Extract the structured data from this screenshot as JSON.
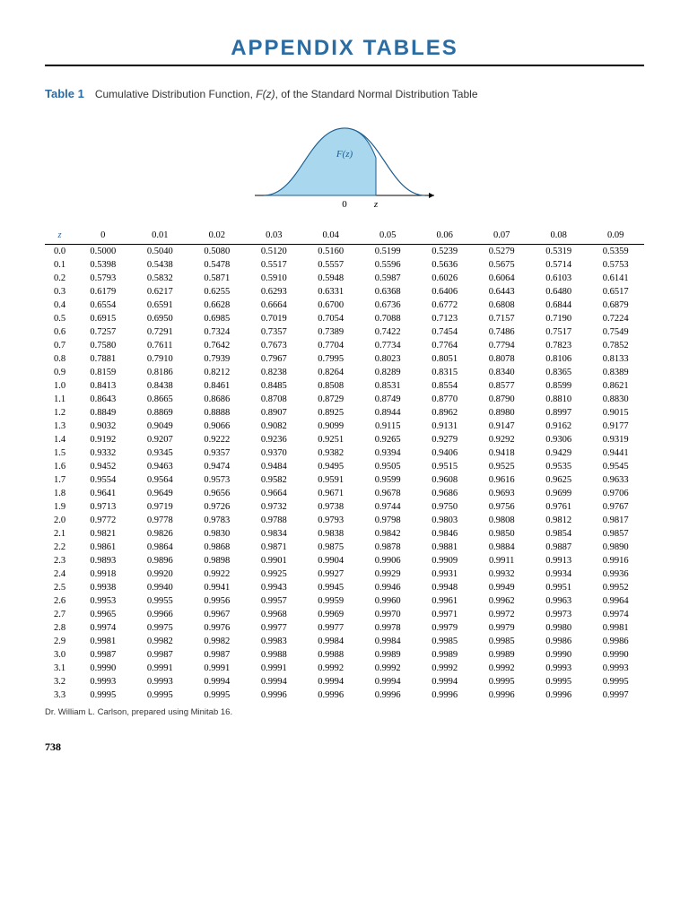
{
  "title": "APPENDIX TABLES",
  "table_label": "Table 1",
  "caption_prefix": "Cumulative Distribution Function, ",
  "caption_fz": "F(z)",
  "caption_suffix": ", of the Standard Normal Distribution Table",
  "curve_label": "F(z)",
  "axis_zero": "0",
  "axis_z": "z",
  "header_z": "z",
  "columns": [
    "0",
    "0.01",
    "0.02",
    "0.03",
    "0.04",
    "0.05",
    "0.06",
    "0.07",
    "0.08",
    "0.09"
  ],
  "rows": [
    {
      "z": "0.0",
      "v": [
        "0.5000",
        "0.5040",
        "0.5080",
        "0.5120",
        "0.5160",
        "0.5199",
        "0.5239",
        "0.5279",
        "0.5319",
        "0.5359"
      ]
    },
    {
      "z": "0.1",
      "v": [
        "0.5398",
        "0.5438",
        "0.5478",
        "0.5517",
        "0.5557",
        "0.5596",
        "0.5636",
        "0.5675",
        "0.5714",
        "0.5753"
      ]
    },
    {
      "z": "0.2",
      "v": [
        "0.5793",
        "0.5832",
        "0.5871",
        "0.5910",
        "0.5948",
        "0.5987",
        "0.6026",
        "0.6064",
        "0.6103",
        "0.6141"
      ]
    },
    {
      "z": "0.3",
      "v": [
        "0.6179",
        "0.6217",
        "0.6255",
        "0.6293",
        "0.6331",
        "0.6368",
        "0.6406",
        "0.6443",
        "0.6480",
        "0.6517"
      ]
    },
    {
      "z": "0.4",
      "v": [
        "0.6554",
        "0.6591",
        "0.6628",
        "0.6664",
        "0.6700",
        "0.6736",
        "0.6772",
        "0.6808",
        "0.6844",
        "0.6879"
      ]
    },
    {
      "z": "0.5",
      "v": [
        "0.6915",
        "0.6950",
        "0.6985",
        "0.7019",
        "0.7054",
        "0.7088",
        "0.7123",
        "0.7157",
        "0.7190",
        "0.7224"
      ]
    },
    {
      "z": "0.6",
      "v": [
        "0.7257",
        "0.7291",
        "0.7324",
        "0.7357",
        "0.7389",
        "0.7422",
        "0.7454",
        "0.7486",
        "0.7517",
        "0.7549"
      ]
    },
    {
      "z": "0.7",
      "v": [
        "0.7580",
        "0.7611",
        "0.7642",
        "0.7673",
        "0.7704",
        "0.7734",
        "0.7764",
        "0.7794",
        "0.7823",
        "0.7852"
      ]
    },
    {
      "z": "0.8",
      "v": [
        "0.7881",
        "0.7910",
        "0.7939",
        "0.7967",
        "0.7995",
        "0.8023",
        "0.8051",
        "0.8078",
        "0.8106",
        "0.8133"
      ]
    },
    {
      "z": "0.9",
      "v": [
        "0.8159",
        "0.8186",
        "0.8212",
        "0.8238",
        "0.8264",
        "0.8289",
        "0.8315",
        "0.8340",
        "0.8365",
        "0.8389"
      ]
    },
    {
      "z": "1.0",
      "v": [
        "0.8413",
        "0.8438",
        "0.8461",
        "0.8485",
        "0.8508",
        "0.8531",
        "0.8554",
        "0.8577",
        "0.8599",
        "0.8621"
      ]
    },
    {
      "z": "1.1",
      "v": [
        "0.8643",
        "0.8665",
        "0.8686",
        "0.8708",
        "0.8729",
        "0.8749",
        "0.8770",
        "0.8790",
        "0.8810",
        "0.8830"
      ]
    },
    {
      "z": "1.2",
      "v": [
        "0.8849",
        "0.8869",
        "0.8888",
        "0.8907",
        "0.8925",
        "0.8944",
        "0.8962",
        "0.8980",
        "0.8997",
        "0.9015"
      ]
    },
    {
      "z": "1.3",
      "v": [
        "0.9032",
        "0.9049",
        "0.9066",
        "0.9082",
        "0.9099",
        "0.9115",
        "0.9131",
        "0.9147",
        "0.9162",
        "0.9177"
      ]
    },
    {
      "z": "1.4",
      "v": [
        "0.9192",
        "0.9207",
        "0.9222",
        "0.9236",
        "0.9251",
        "0.9265",
        "0.9279",
        "0.9292",
        "0.9306",
        "0.9319"
      ]
    },
    {
      "z": "1.5",
      "v": [
        "0.9332",
        "0.9345",
        "0.9357",
        "0.9370",
        "0.9382",
        "0.9394",
        "0.9406",
        "0.9418",
        "0.9429",
        "0.9441"
      ]
    },
    {
      "z": "1.6",
      "v": [
        "0.9452",
        "0.9463",
        "0.9474",
        "0.9484",
        "0.9495",
        "0.9505",
        "0.9515",
        "0.9525",
        "0.9535",
        "0.9545"
      ]
    },
    {
      "z": "1.7",
      "v": [
        "0.9554",
        "0.9564",
        "0.9573",
        "0.9582",
        "0.9591",
        "0.9599",
        "0.9608",
        "0.9616",
        "0.9625",
        "0.9633"
      ]
    },
    {
      "z": "1.8",
      "v": [
        "0.9641",
        "0.9649",
        "0.9656",
        "0.9664",
        "0.9671",
        "0.9678",
        "0.9686",
        "0.9693",
        "0.9699",
        "0.9706"
      ]
    },
    {
      "z": "1.9",
      "v": [
        "0.9713",
        "0.9719",
        "0.9726",
        "0.9732",
        "0.9738",
        "0.9744",
        "0.9750",
        "0.9756",
        "0.9761",
        "0.9767"
      ]
    },
    {
      "z": "2.0",
      "v": [
        "0.9772",
        "0.9778",
        "0.9783",
        "0.9788",
        "0.9793",
        "0.9798",
        "0.9803",
        "0.9808",
        "0.9812",
        "0.9817"
      ]
    },
    {
      "z": "2.1",
      "v": [
        "0.9821",
        "0.9826",
        "0.9830",
        "0.9834",
        "0.9838",
        "0.9842",
        "0.9846",
        "0.9850",
        "0.9854",
        "0.9857"
      ]
    },
    {
      "z": "2.2",
      "v": [
        "0.9861",
        "0.9864",
        "0.9868",
        "0.9871",
        "0.9875",
        "0.9878",
        "0.9881",
        "0.9884",
        "0.9887",
        "0.9890"
      ]
    },
    {
      "z": "2.3",
      "v": [
        "0.9893",
        "0.9896",
        "0.9898",
        "0.9901",
        "0.9904",
        "0.9906",
        "0.9909",
        "0.9911",
        "0.9913",
        "0.9916"
      ]
    },
    {
      "z": "2.4",
      "v": [
        "0.9918",
        "0.9920",
        "0.9922",
        "0.9925",
        "0.9927",
        "0.9929",
        "0.9931",
        "0.9932",
        "0.9934",
        "0.9936"
      ]
    },
    {
      "z": "2.5",
      "v": [
        "0.9938",
        "0.9940",
        "0.9941",
        "0.9943",
        "0.9945",
        "0.9946",
        "0.9948",
        "0.9949",
        "0.9951",
        "0.9952"
      ]
    },
    {
      "z": "2.6",
      "v": [
        "0.9953",
        "0.9955",
        "0.9956",
        "0.9957",
        "0.9959",
        "0.9960",
        "0.9961",
        "0.9962",
        "0.9963",
        "0.9964"
      ]
    },
    {
      "z": "2.7",
      "v": [
        "0.9965",
        "0.9966",
        "0.9967",
        "0.9968",
        "0.9969",
        "0.9970",
        "0.9971",
        "0.9972",
        "0.9973",
        "0.9974"
      ]
    },
    {
      "z": "2.8",
      "v": [
        "0.9974",
        "0.9975",
        "0.9976",
        "0.9977",
        "0.9977",
        "0.9978",
        "0.9979",
        "0.9979",
        "0.9980",
        "0.9981"
      ]
    },
    {
      "z": "2.9",
      "v": [
        "0.9981",
        "0.9982",
        "0.9982",
        "0.9983",
        "0.9984",
        "0.9984",
        "0.9985",
        "0.9985",
        "0.9986",
        "0.9986"
      ]
    },
    {
      "z": "3.0",
      "v": [
        "0.9987",
        "0.9987",
        "0.9987",
        "0.9988",
        "0.9988",
        "0.9989",
        "0.9989",
        "0.9989",
        "0.9990",
        "0.9990"
      ]
    },
    {
      "z": "3.1",
      "v": [
        "0.9990",
        "0.9991",
        "0.9991",
        "0.9991",
        "0.9992",
        "0.9992",
        "0.9992",
        "0.9992",
        "0.9993",
        "0.9993"
      ]
    },
    {
      "z": "3.2",
      "v": [
        "0.9993",
        "0.9993",
        "0.9994",
        "0.9994",
        "0.9994",
        "0.9994",
        "0.9994",
        "0.9995",
        "0.9995",
        "0.9995"
      ]
    },
    {
      "z": "3.3",
      "v": [
        "0.9995",
        "0.9995",
        "0.9995",
        "0.9996",
        "0.9996",
        "0.9996",
        "0.9996",
        "0.9996",
        "0.9996",
        "0.9997"
      ]
    }
  ],
  "footnote": "Dr. William L. Carlson, prepared using Minitab 16.",
  "page_number": "738",
  "colors": {
    "accent": "#2b6ca3",
    "curve_fill": "#a9d8ee",
    "curve_stroke": "#1e5e8f",
    "text": "#000000",
    "bg": "#ffffff"
  },
  "table_style": {
    "font_size_pt": 10.5,
    "header_italic_color": "#2b6ca3",
    "row_count": 34,
    "col_count": 11
  }
}
